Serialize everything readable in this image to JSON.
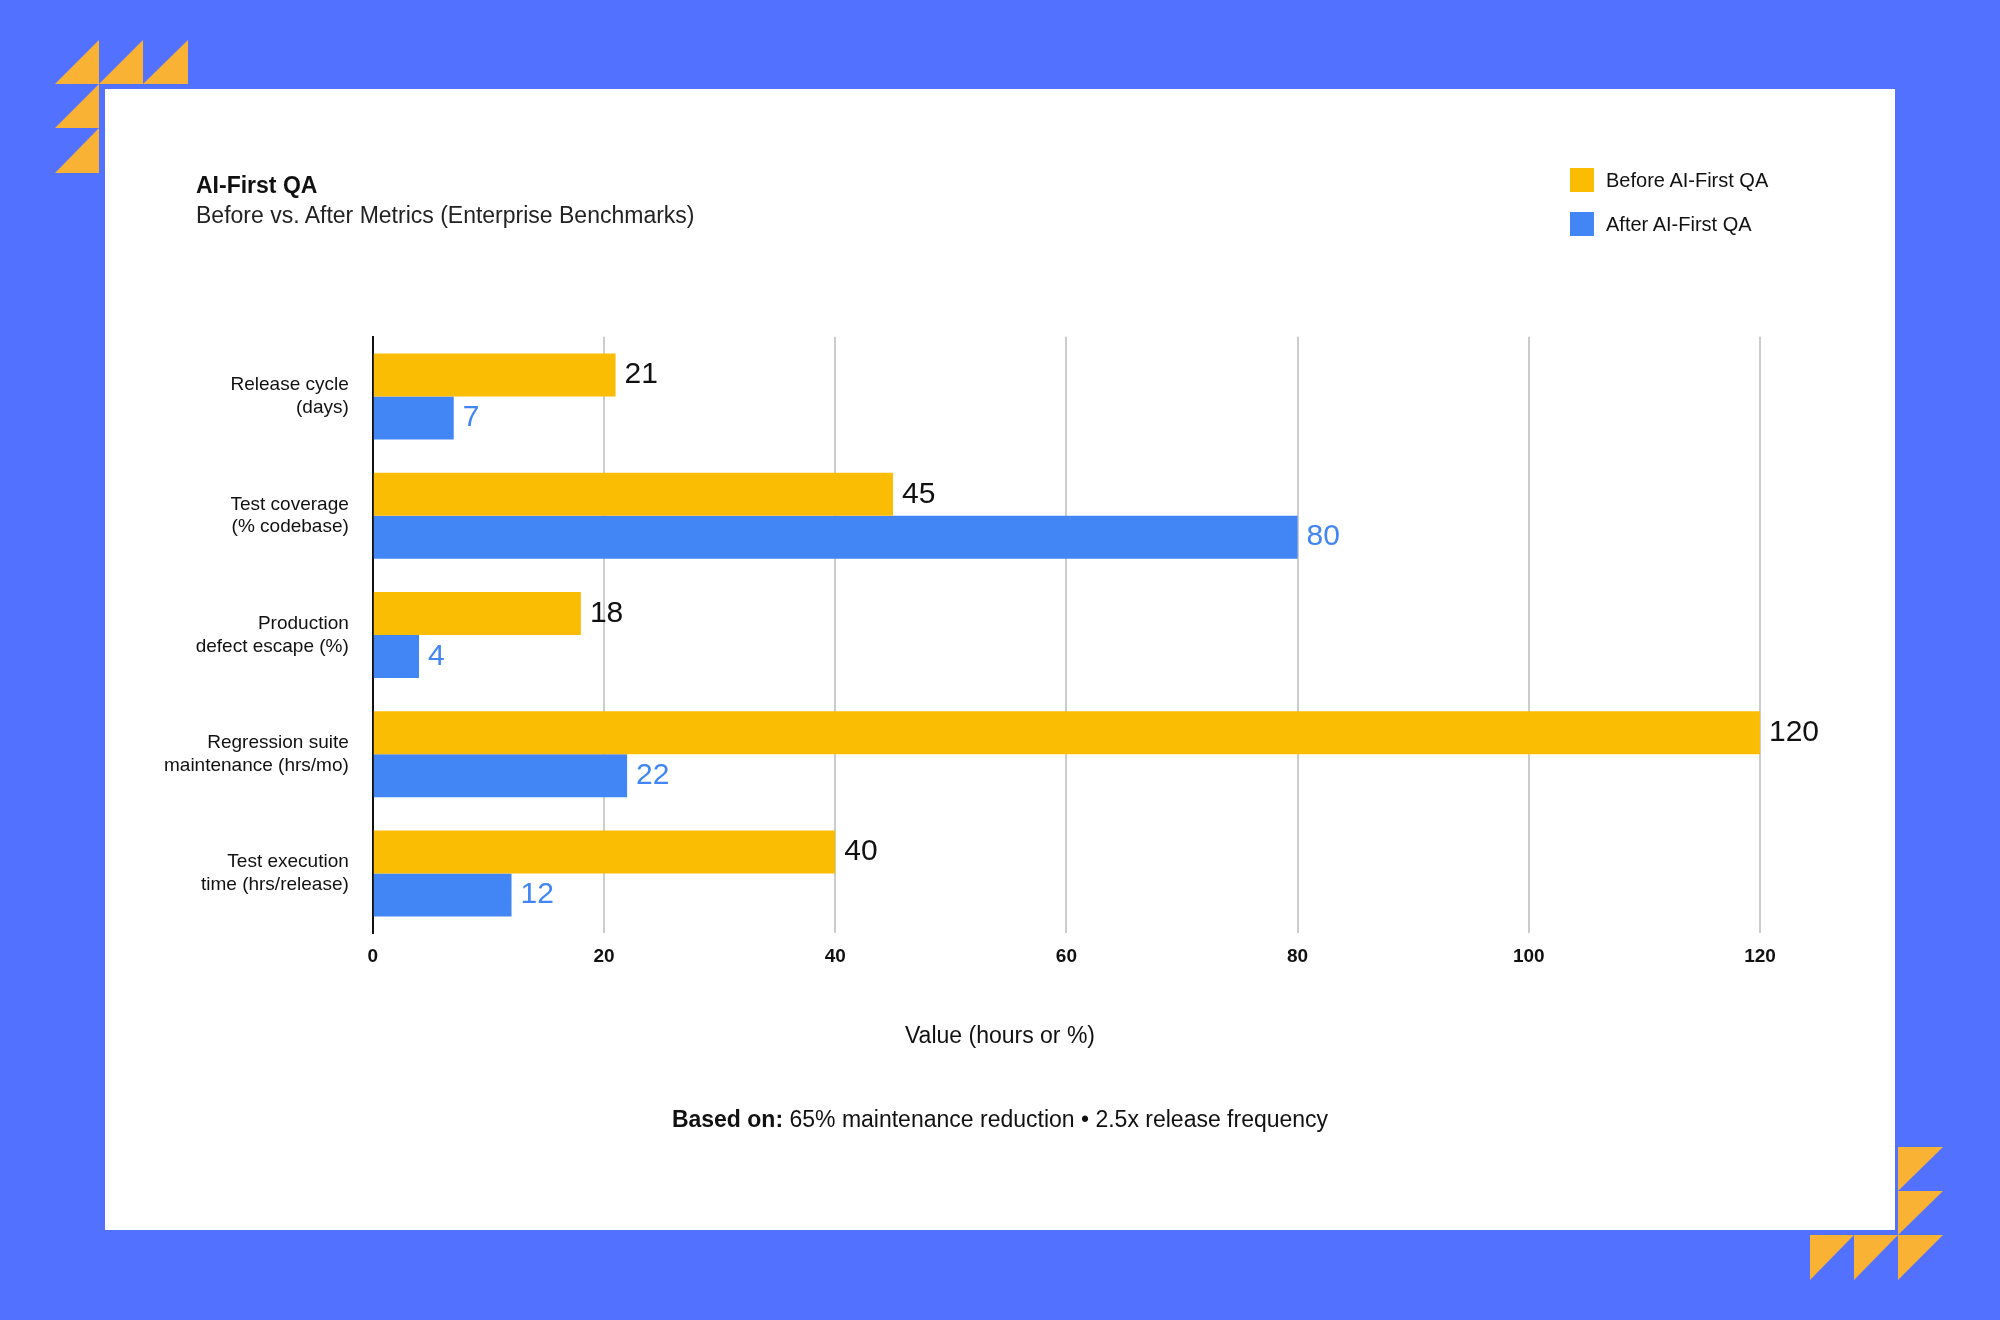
{
  "chart_data": {
    "type": "bar",
    "orientation": "horizontal",
    "title": "AI-First QA",
    "subtitle": "Before vs. After Metrics (Enterprise Benchmarks)",
    "categories": [
      "Release cycle\n(days)",
      "Test coverage\n(% codebase)",
      "Production\ndefect escape (%)",
      "Regression suite\nmaintenance (hrs/mo)",
      "Test execution\ntime (hrs/release)"
    ],
    "series": [
      {
        "name": "Before AI-First QA",
        "color": "#fbbc04",
        "values": [
          21,
          45,
          18,
          120,
          40
        ]
      },
      {
        "name": "After AI-First QA",
        "color": "#4285f4",
        "values": [
          7,
          80,
          4,
          22,
          12
        ]
      }
    ],
    "xlim": [
      0,
      120
    ],
    "xticks": [
      0,
      20,
      40,
      60,
      80,
      100,
      120
    ],
    "xlabel": "Value (hours or %)",
    "grid": "x",
    "legend": "top right",
    "data_labels": true,
    "annotations": [
      "Based on: 65% maintenance reduction • 2.5x release frequency"
    ]
  }
}
